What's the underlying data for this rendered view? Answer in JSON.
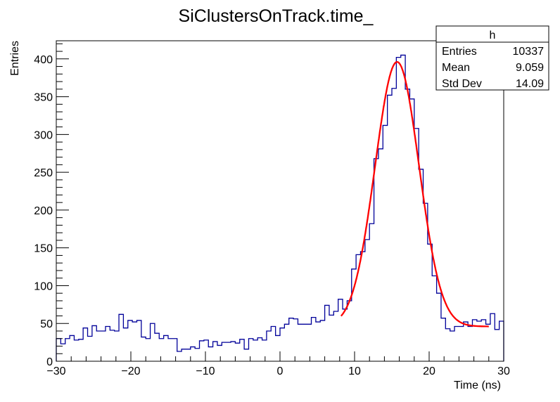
{
  "chart_data": {
    "type": "histogram",
    "title": "SiClustersOnTrack.time_",
    "xlabel": "Time (ns)",
    "ylabel": "Entries",
    "xlim": [
      -30,
      30
    ],
    "ylim": [
      0,
      424
    ],
    "x_ticks": [
      -30,
      -20,
      -10,
      0,
      10,
      20,
      30
    ],
    "y_ticks": [
      0,
      50,
      100,
      150,
      200,
      250,
      300,
      350,
      400
    ],
    "bin_width": 0.6,
    "values": [
      30,
      23,
      30,
      34,
      28,
      29,
      44,
      33,
      47,
      40,
      40,
      46,
      41,
      40,
      62,
      44,
      54,
      52,
      54,
      32,
      30,
      50,
      37,
      30,
      34,
      30,
      30,
      13,
      16,
      16,
      19,
      17,
      27,
      28,
      19,
      26,
      21,
      25,
      25,
      26,
      24,
      29,
      16,
      30,
      28,
      31,
      28,
      40,
      46,
      34,
      44,
      49,
      57,
      56,
      49,
      49,
      49,
      58,
      52,
      54,
      74,
      61,
      66,
      82,
      69,
      80,
      122,
      141,
      145,
      161,
      182,
      268,
      281,
      312,
      352,
      361,
      402,
      405,
      360,
      347,
      308,
      254,
      209,
      155,
      113,
      90,
      57,
      43,
      40,
      46,
      46,
      52,
      46,
      55,
      53,
      55,
      49,
      63,
      42,
      53
    ],
    "hist_color": "#000099",
    "fit": {
      "function": "gaussian + constant",
      "mean": 15.7,
      "sigma": 2.95,
      "amplitude": 350,
      "constant": 46,
      "range": [
        8.2,
        28
      ],
      "color": "#ff0000"
    },
    "grid": false,
    "legend": "top-right",
    "stats_box": {
      "title": "h",
      "rows": [
        {
          "label": "Entries",
          "value": "10337"
        },
        {
          "label": "Mean",
          "value": "9.059"
        },
        {
          "label": "Std Dev",
          "value": "14.09"
        }
      ]
    }
  }
}
